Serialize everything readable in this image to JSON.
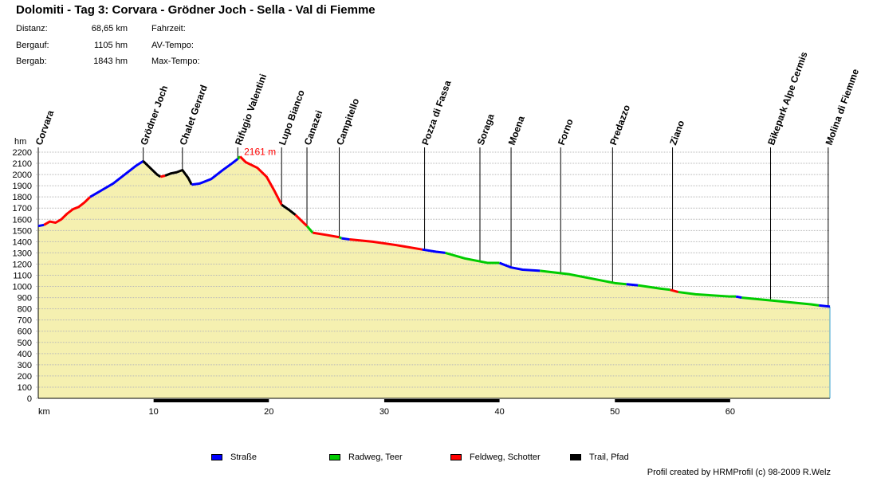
{
  "title": "Dolomiti - Tag 3: Corvara - Grödner Joch - Sella - Val di Fiemme",
  "stats_left": [
    {
      "label": "Distanz:",
      "value": "68,65 km"
    },
    {
      "label": "Bergauf:",
      "value": "1105 hm"
    },
    {
      "label": "Bergab:",
      "value": "1843 hm"
    }
  ],
  "stats_right": [
    "Fahrzeit:",
    "AV-Tempo:",
    "Max-Tempo:"
  ],
  "legend": [
    {
      "label": "Straße",
      "color": "#0000ff"
    },
    {
      "label": "Radweg, Teer",
      "color": "#00cc00"
    },
    {
      "label": "Feldweg, Schotter",
      "color": "#ff0000"
    },
    {
      "label": "Trail, Pfad",
      "color": "#000000"
    }
  ],
  "credit": "Profil created by HRMProfil (c) 98-2009 R.Welz",
  "chart_data": {
    "type": "area",
    "ylabel": "hm",
    "xlabel": "km",
    "xlim": [
      0,
      68.65
    ],
    "ylim": [
      0,
      2200
    ],
    "yticks": [
      0,
      100,
      200,
      300,
      400,
      500,
      600,
      700,
      800,
      900,
      1000,
      1100,
      1200,
      1300,
      1400,
      1500,
      1600,
      1700,
      1800,
      1900,
      2000,
      2100,
      2200
    ],
    "xticks": [
      10,
      20,
      30,
      40,
      50,
      60
    ],
    "max_label": "2161 m",
    "max_point": {
      "x": 17.5,
      "y": 2161
    },
    "fill_color": "#f5f0b0",
    "waypoints": [
      {
        "name": "Corvara",
        "km": 0
      },
      {
        "name": "Grödner Joch",
        "km": 9.1
      },
      {
        "name": "Chalet Gerard",
        "km": 12.5
      },
      {
        "name": "Rifugio Valentini",
        "km": 17.3
      },
      {
        "name": "Lupo Bianco",
        "km": 21.1
      },
      {
        "name": "Canazei",
        "km": 23.3
      },
      {
        "name": "Campitello",
        "km": 26.1
      },
      {
        "name": "Pozza di Fassa",
        "km": 33.5
      },
      {
        "name": "Soraga",
        "km": 38.3
      },
      {
        "name": "Moena",
        "km": 41.0
      },
      {
        "name": "Forno",
        "km": 45.3
      },
      {
        "name": "Predazzo",
        "km": 49.8
      },
      {
        "name": "Ziano",
        "km": 55.0
      },
      {
        "name": "Bikepark Alpe Cermis",
        "km": 63.5
      },
      {
        "name": "Molina di Fiemme",
        "km": 68.5
      }
    ],
    "series": [
      {
        "surface": "Straße",
        "color": "#0000ff",
        "points": [
          [
            0,
            1540
          ],
          [
            0.5,
            1550
          ]
        ]
      },
      {
        "surface": "Feldweg, Schotter",
        "color": "#ff0000",
        "points": [
          [
            0.5,
            1550
          ],
          [
            1,
            1580
          ],
          [
            1.5,
            1570
          ],
          [
            2,
            1600
          ],
          [
            2.5,
            1650
          ],
          [
            3,
            1690
          ],
          [
            3.5,
            1710
          ],
          [
            4,
            1750
          ],
          [
            4.5,
            1800
          ]
        ]
      },
      {
        "surface": "Straße",
        "color": "#0000ff",
        "points": [
          [
            4.5,
            1800
          ],
          [
            5.5,
            1860
          ],
          [
            6.5,
            1920
          ],
          [
            7.5,
            2000
          ],
          [
            8.5,
            2080
          ],
          [
            9.1,
            2120
          ]
        ]
      },
      {
        "surface": "Trail, Pfad",
        "color": "#000000",
        "points": [
          [
            9.1,
            2120
          ],
          [
            9.7,
            2060
          ],
          [
            10.3,
            2000
          ],
          [
            10.6,
            1980
          ]
        ]
      },
      {
        "surface": "Feldweg, Schotter",
        "color": "#ff0000",
        "points": [
          [
            10.6,
            1980
          ],
          [
            11.0,
            1990
          ]
        ]
      },
      {
        "surface": "Trail, Pfad",
        "color": "#000000",
        "points": [
          [
            11.0,
            1990
          ],
          [
            11.5,
            2010
          ],
          [
            12.0,
            2020
          ],
          [
            12.5,
            2040
          ],
          [
            13.0,
            1970
          ],
          [
            13.3,
            1910
          ]
        ]
      },
      {
        "surface": "Straße",
        "color": "#0000ff",
        "points": [
          [
            13.3,
            1910
          ],
          [
            14,
            1920
          ],
          [
            15,
            1960
          ],
          [
            16,
            2040
          ],
          [
            16.8,
            2100
          ],
          [
            17.3,
            2140
          ]
        ]
      },
      {
        "surface": "Radweg, Teer",
        "color": "#00cc00",
        "points": [
          [
            17.3,
            2140
          ],
          [
            17.5,
            2161
          ]
        ]
      },
      {
        "surface": "Feldweg, Schotter",
        "color": "#ff0000",
        "points": [
          [
            17.5,
            2161
          ],
          [
            18,
            2110
          ],
          [
            19,
            2060
          ],
          [
            19.8,
            1980
          ],
          [
            20.5,
            1850
          ],
          [
            21.1,
            1730
          ]
        ]
      },
      {
        "surface": "Trail, Pfad",
        "color": "#000000",
        "points": [
          [
            21.1,
            1730
          ],
          [
            21.8,
            1680
          ],
          [
            22.3,
            1640
          ]
        ]
      },
      {
        "surface": "Feldweg, Schotter",
        "color": "#ff0000",
        "points": [
          [
            22.3,
            1640
          ],
          [
            23.0,
            1570
          ],
          [
            23.3,
            1540
          ]
        ]
      },
      {
        "surface": "Radweg, Teer",
        "color": "#00cc00",
        "points": [
          [
            23.3,
            1540
          ],
          [
            23.8,
            1480
          ]
        ]
      },
      {
        "surface": "Feldweg, Schotter",
        "color": "#ff0000",
        "points": [
          [
            23.8,
            1480
          ],
          [
            25,
            1460
          ],
          [
            26.1,
            1440
          ]
        ]
      },
      {
        "surface": "Radweg, Teer",
        "color": "#00cc00",
        "points": [
          [
            26.1,
            1440
          ],
          [
            26.3,
            1430
          ]
        ]
      },
      {
        "surface": "Straße",
        "color": "#0000ff",
        "points": [
          [
            26.3,
            1430
          ],
          [
            27,
            1420
          ]
        ]
      },
      {
        "surface": "Feldweg, Schotter",
        "color": "#ff0000",
        "points": [
          [
            27,
            1420
          ],
          [
            29,
            1400
          ],
          [
            31,
            1370
          ],
          [
            33.3,
            1330
          ]
        ]
      },
      {
        "surface": "Straße",
        "color": "#0000ff",
        "points": [
          [
            33.3,
            1330
          ],
          [
            34.5,
            1310
          ],
          [
            35.3,
            1300
          ]
        ]
      },
      {
        "surface": "Radweg, Teer",
        "color": "#00cc00",
        "points": [
          [
            35.3,
            1300
          ],
          [
            37,
            1250
          ],
          [
            39,
            1210
          ],
          [
            40,
            1210
          ]
        ]
      },
      {
        "surface": "Straße",
        "color": "#0000ff",
        "points": [
          [
            40,
            1210
          ],
          [
            41,
            1170
          ],
          [
            42,
            1150
          ],
          [
            43.5,
            1140
          ]
        ]
      },
      {
        "surface": "Radweg, Teer",
        "color": "#00cc00",
        "points": [
          [
            43.5,
            1140
          ],
          [
            46,
            1110
          ],
          [
            48,
            1070
          ],
          [
            50,
            1030
          ],
          [
            51,
            1020
          ]
        ]
      },
      {
        "surface": "Straße",
        "color": "#0000ff",
        "points": [
          [
            51,
            1020
          ],
          [
            52,
            1010
          ]
        ]
      },
      {
        "surface": "Radweg, Teer",
        "color": "#00cc00",
        "points": [
          [
            52,
            1010
          ],
          [
            54,
            980
          ],
          [
            54.8,
            970
          ]
        ]
      },
      {
        "surface": "Feldweg, Schotter",
        "color": "#ff0000",
        "points": [
          [
            54.8,
            970
          ],
          [
            55.5,
            950
          ]
        ]
      },
      {
        "surface": "Radweg, Teer",
        "color": "#00cc00",
        "points": [
          [
            55.5,
            950
          ],
          [
            57,
            930
          ],
          [
            60,
            910
          ],
          [
            60.5,
            910
          ]
        ]
      },
      {
        "surface": "Straße",
        "color": "#0000ff",
        "points": [
          [
            60.5,
            910
          ],
          [
            61,
            900
          ]
        ]
      },
      {
        "surface": "Radweg, Teer",
        "color": "#00cc00",
        "points": [
          [
            61,
            900
          ],
          [
            64,
            870
          ],
          [
            67,
            840
          ],
          [
            67.7,
            830
          ]
        ]
      },
      {
        "surface": "Straße",
        "color": "#0000ff",
        "points": [
          [
            67.7,
            830
          ],
          [
            68.65,
            820
          ]
        ]
      }
    ]
  }
}
